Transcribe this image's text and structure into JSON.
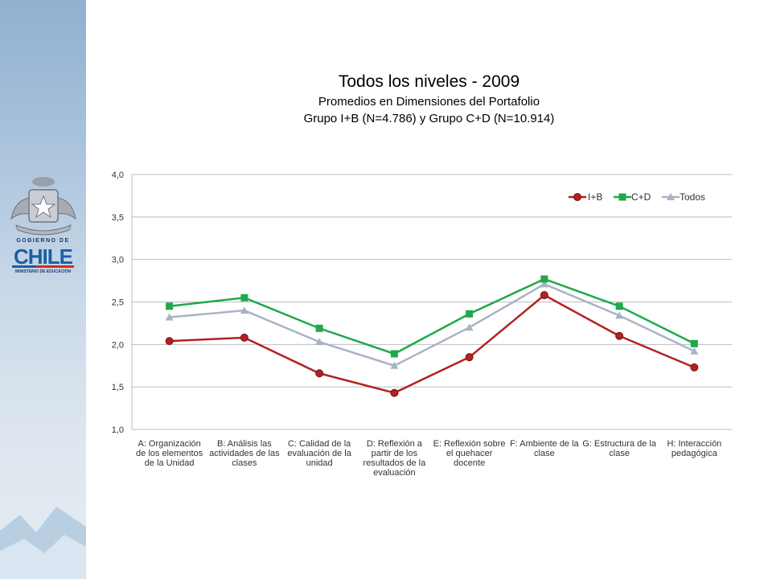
{
  "header": {
    "title": "Todos los niveles - 2009",
    "subtitle1": "Promedios en Dimensiones del Portafolio",
    "subtitle2": "Grupo I+B (N=4.786) y Grupo C+D (N=10.914)"
  },
  "logo": {
    "line1": "GOBIERNO DE",
    "line2": "CHILE",
    "line3": "MINISTERIO DE EDUCACIÓN"
  },
  "chart_data": {
    "type": "line",
    "categories": [
      "A: Organización de los elementos de la Unidad",
      "B: Análisis las actividades de las clases",
      "C: Calidad de la evaluación de la unidad",
      "D: Reflexión a partir de los resultados de la evaluación",
      "E: Reflexión sobre el quehacer docente",
      "F: Ambiente de la clase",
      "G: Estructura de la clase",
      "H: Interacción pedagógica"
    ],
    "series": [
      {
        "name": "I+B",
        "color": "#b22222",
        "marker": "circle",
        "values": [
          2.04,
          2.08,
          1.66,
          1.43,
          1.85,
          2.58,
          2.1,
          1.73
        ]
      },
      {
        "name": "C+D",
        "color": "#1ea84a",
        "marker": "square",
        "values": [
          2.45,
          2.55,
          2.19,
          1.89,
          2.36,
          2.77,
          2.45,
          2.01
        ]
      },
      {
        "name": "Todos",
        "color": "#a9b3c3",
        "marker": "triangle",
        "values": [
          2.32,
          2.4,
          2.03,
          1.75,
          2.2,
          2.71,
          2.34,
          1.92
        ]
      }
    ],
    "yticks": [
      "1,0",
      "1,5",
      "2,0",
      "2,5",
      "3,0",
      "3,5",
      "4,0"
    ],
    "ylim": [
      1.0,
      4.0
    ],
    "grid": true,
    "legend": "top-right"
  }
}
